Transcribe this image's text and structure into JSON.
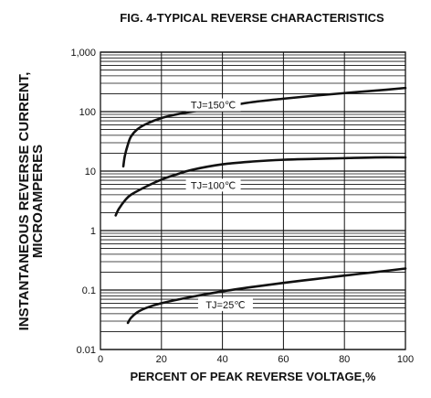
{
  "chart_data": {
    "type": "line",
    "title": "FIG. 4-TYPICAL REVERSE CHARACTERISTICS",
    "xlabel": "PERCENT OF PEAK REVERSE VOLTAGE,%",
    "ylabel_line1": "INSTANTANEOUS REVERSE CURRENT,",
    "ylabel_line2": "MICROAMPERES",
    "x_scale": "linear",
    "y_scale": "log",
    "xlim": [
      0,
      100
    ],
    "ylim": [
      0.01,
      1000
    ],
    "x_ticks": [
      {
        "value": 0,
        "label": "0"
      },
      {
        "value": 20,
        "label": "20"
      },
      {
        "value": 40,
        "label": "40"
      },
      {
        "value": 60,
        "label": "60"
      },
      {
        "value": 80,
        "label": "80"
      },
      {
        "value": 100,
        "label": "100"
      }
    ],
    "y_ticks": [
      {
        "value": 0.01,
        "label": "0.01"
      },
      {
        "value": 0.1,
        "label": "0.1"
      },
      {
        "value": 1,
        "label": "1"
      },
      {
        "value": 10,
        "label": "10"
      },
      {
        "value": 100,
        "label": "100"
      },
      {
        "value": 1000,
        "label": "1,000"
      }
    ],
    "grid": true,
    "series": [
      {
        "name": "TJ=150℃",
        "label_at": {
          "x": 37,
          "y": 130
        },
        "x": [
          7.5,
          8,
          9,
          10,
          12,
          15,
          20,
          25,
          30,
          40,
          50,
          60,
          70,
          80,
          90,
          100
        ],
        "y": [
          12,
          18,
          28,
          38,
          50,
          62,
          78,
          90,
          100,
          120,
          145,
          165,
          185,
          205,
          225,
          250
        ]
      },
      {
        "name": "TJ=100℃",
        "label_at": {
          "x": 37,
          "y": 5.8
        },
        "x": [
          5,
          6,
          8,
          10,
          15,
          20,
          25,
          30,
          40,
          50,
          60,
          70,
          80,
          90,
          100
        ],
        "y": [
          1.8,
          2.3,
          3.2,
          4.0,
          5.5,
          7.2,
          8.8,
          10.5,
          13,
          14.5,
          15.5,
          16,
          16.5,
          17,
          17
        ]
      },
      {
        "name": "TJ=25℃",
        "label_at": {
          "x": 41,
          "y": 0.057
        },
        "x": [
          9,
          10,
          12,
          15,
          20,
          30,
          40,
          50,
          60,
          70,
          80,
          90,
          100
        ],
        "y": [
          0.028,
          0.034,
          0.042,
          0.05,
          0.06,
          0.077,
          0.095,
          0.113,
          0.132,
          0.152,
          0.175,
          0.2,
          0.23
        ]
      }
    ]
  }
}
